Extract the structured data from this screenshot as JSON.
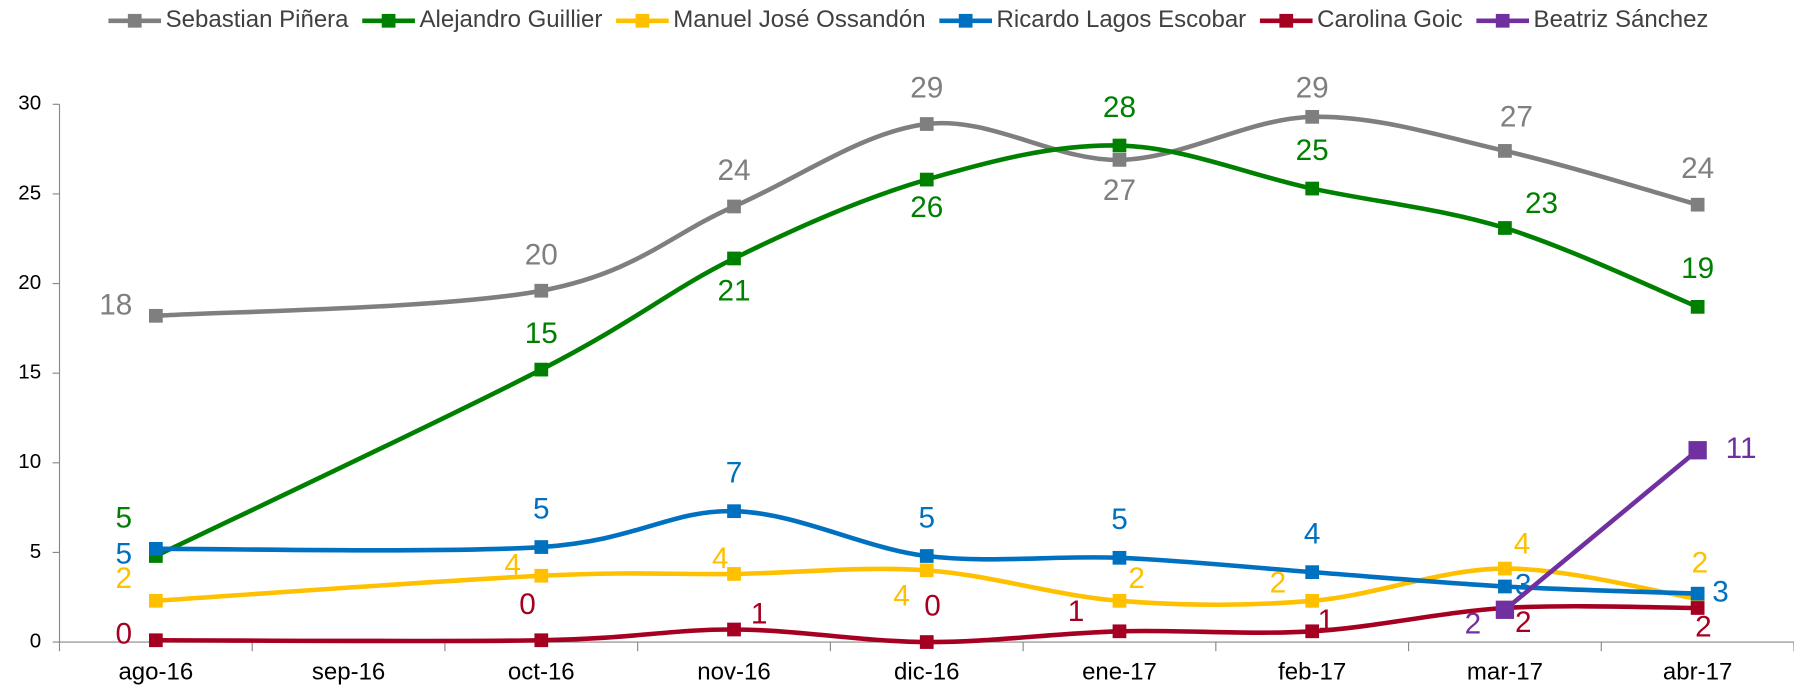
{
  "chart_data": {
    "type": "line",
    "categories": [
      "ago-16",
      "sep-16",
      "oct-16",
      "nov-16",
      "dic-16",
      "ene-17",
      "feb-17",
      "mar-17",
      "abr-17"
    ],
    "ylim": [
      0,
      30
    ],
    "yticks": [
      0,
      5,
      10,
      15,
      20,
      25,
      30
    ],
    "smooth": true,
    "span_gaps": true,
    "legend": "top",
    "series": [
      {
        "name": "Sebastian Piñera",
        "color": "#7f7f7f",
        "values": [
          18.2,
          null,
          19.6,
          24.3,
          28.9,
          26.9,
          29.3,
          27.4,
          24.4
        ],
        "value_labels": [
          "18",
          null,
          "20",
          "24",
          "29",
          "27",
          "29",
          "27",
          "24"
        ]
      },
      {
        "name": "Alejandro Guillier",
        "color": "#008000",
        "values": [
          4.8,
          null,
          15.2,
          21.4,
          25.8,
          27.7,
          25.3,
          23.1,
          18.7
        ],
        "value_labels": [
          "5",
          null,
          "15",
          "21",
          "26",
          "28",
          "25",
          "23",
          "19"
        ]
      },
      {
        "name": "Manuel José Ossandón",
        "color": "#ffc000",
        "values": [
          2.3,
          null,
          3.7,
          3.8,
          4.0,
          2.3,
          2.3,
          4.1,
          2.4
        ],
        "value_labels": [
          "2",
          null,
          "4",
          "4",
          "4",
          "2",
          "2",
          "4",
          "2"
        ]
      },
      {
        "name": "Ricardo Lagos Escobar",
        "color": "#0070c0",
        "values": [
          5.2,
          null,
          5.3,
          7.3,
          4.8,
          4.7,
          3.9,
          3.1,
          2.7
        ],
        "value_labels": [
          "5",
          null,
          "5",
          "7",
          "5",
          "5",
          "4",
          "3",
          "3"
        ]
      },
      {
        "name": "Carolina Goic",
        "color": "#a50021",
        "values": [
          0.1,
          null,
          0.1,
          0.7,
          0.0,
          0.6,
          0.6,
          1.9,
          1.9
        ],
        "value_labels": [
          "0",
          null,
          "0",
          "1",
          "0",
          "1",
          "1",
          "2",
          "2"
        ]
      },
      {
        "name": "Beatriz Sánchez",
        "color": "#7030a0",
        "values": [
          null,
          null,
          null,
          null,
          null,
          null,
          null,
          1.8,
          10.7
        ],
        "value_labels": [
          null,
          null,
          null,
          null,
          null,
          null,
          null,
          "2",
          "11"
        ]
      }
    ]
  }
}
